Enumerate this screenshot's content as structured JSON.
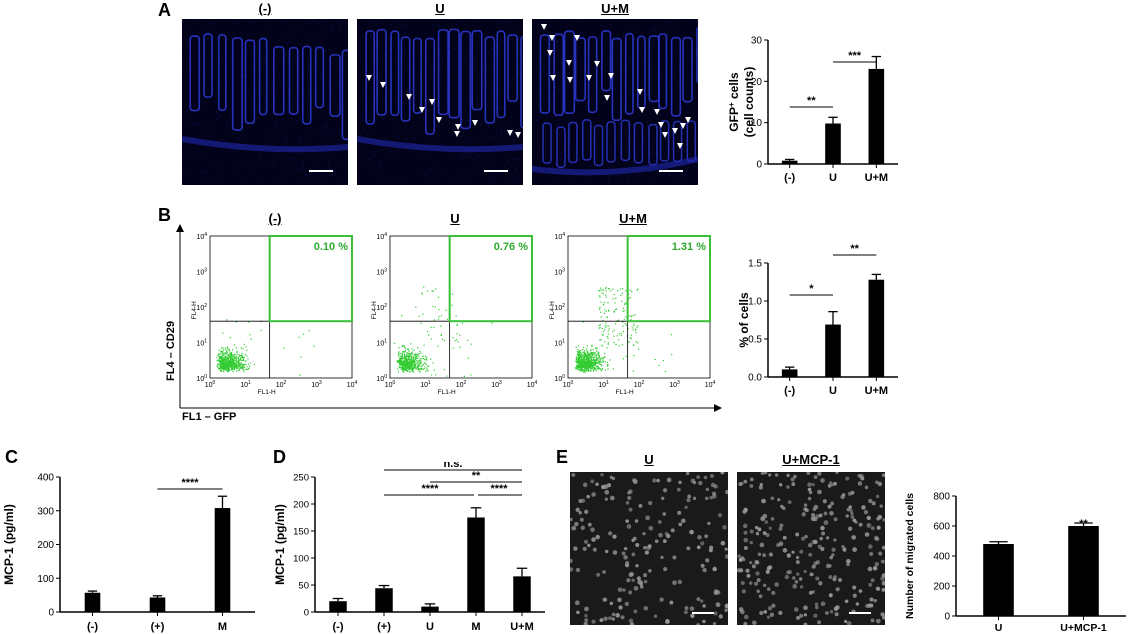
{
  "figure": {
    "panels": {
      "A": {
        "letter": "A",
        "image_labels": [
          "(-)",
          "U",
          "U+M"
        ]
      },
      "B": {
        "letter": "B",
        "image_labels": [
          "(-)",
          "U",
          "U+M"
        ],
        "quadrant_percents": [
          "0.10 %",
          "0.76 %",
          "1.31 %"
        ],
        "y_axis_label": "FL4 – CD29",
        "x_axis_label": "FL1 – GFP",
        "plot_y_label": "FL4-H",
        "plot_x_label": "FL1-H",
        "log_ticks": [
          "10",
          "10",
          "10",
          "10",
          "10"
        ],
        "log_exponents": [
          "0",
          "1",
          "2",
          "3",
          "4"
        ]
      },
      "C": {
        "letter": "C"
      },
      "D": {
        "letter": "D"
      },
      "E": {
        "letter": "E",
        "image_labels": [
          "U",
          "U+MCP-1"
        ]
      }
    }
  },
  "chart_data": [
    {
      "id": "A-chart",
      "type": "bar",
      "categories": [
        "(-)",
        "U",
        "U+M"
      ],
      "values": [
        0.8,
        9.8,
        23.0
      ],
      "errors": [
        0.3,
        1.5,
        3.0
      ],
      "ylabel": "GFP+ cells (cell counts)",
      "ylabel_lines": [
        "GFP",
        "+",
        " cells",
        "(cell counts)"
      ],
      "ylim": [
        0,
        30
      ],
      "yticks": [
        "0",
        "10",
        "20",
        "30"
      ],
      "significance": [
        {
          "from": 0,
          "to": 1,
          "label": "**"
        },
        {
          "from": 1,
          "to": 2,
          "label": "***"
        }
      ]
    },
    {
      "id": "B-chart",
      "type": "bar",
      "categories": [
        "(-)",
        "U",
        "U+M"
      ],
      "values": [
        0.1,
        0.69,
        1.28
      ],
      "errors": [
        0.03,
        0.17,
        0.07
      ],
      "ylabel": "% of cells",
      "ylim": [
        0,
        1.5
      ],
      "yticks": [
        "0.0",
        "0.5",
        "1.0",
        "1.5"
      ],
      "significance": [
        {
          "from": 0,
          "to": 1,
          "label": "*"
        },
        {
          "from": 1,
          "to": 2,
          "label": "**"
        }
      ]
    },
    {
      "id": "C-chart",
      "type": "bar",
      "categories": [
        "(-)",
        "(+)",
        "M"
      ],
      "values": [
        57,
        43,
        308
      ],
      "errors": [
        5,
        5,
        35
      ],
      "ylabel": "MCP-1 (pg/ml)",
      "ylim": [
        0,
        400
      ],
      "yticks": [
        "0",
        "100",
        "200",
        "300",
        "400"
      ],
      "significance": [
        {
          "from": 1,
          "to": 2,
          "label": "****"
        }
      ]
    },
    {
      "id": "D-chart",
      "type": "bar",
      "categories": [
        "(-)",
        "(+)",
        "U",
        "M",
        "U+M"
      ],
      "values": [
        20,
        44,
        10,
        175,
        66
      ],
      "errors": [
        5,
        5,
        5,
        18,
        15
      ],
      "ylabel": "MCP-1 (pg/ml)",
      "ylim": [
        0,
        250
      ],
      "yticks": [
        "0",
        "50",
        "100",
        "150",
        "200",
        "250"
      ],
      "significance": [
        {
          "from": 1,
          "to": 4,
          "label": "n.s."
        },
        {
          "from": 2,
          "to": 4,
          "label": "**"
        },
        {
          "from": 1,
          "to": 3,
          "label": "****"
        },
        {
          "from": 3,
          "to": 4,
          "label": "****"
        }
      ]
    },
    {
      "id": "E-chart",
      "type": "bar",
      "categories": [
        "U",
        "U+MCP-1"
      ],
      "values": [
        480,
        600
      ],
      "errors": [
        15,
        20
      ],
      "ylabel": "Number of migrated cells",
      "ylim": [
        0,
        800
      ],
      "yticks": [
        "0",
        "200",
        "400",
        "600",
        "800"
      ],
      "significance": [
        {
          "over": 1,
          "label": "**"
        }
      ]
    }
  ]
}
